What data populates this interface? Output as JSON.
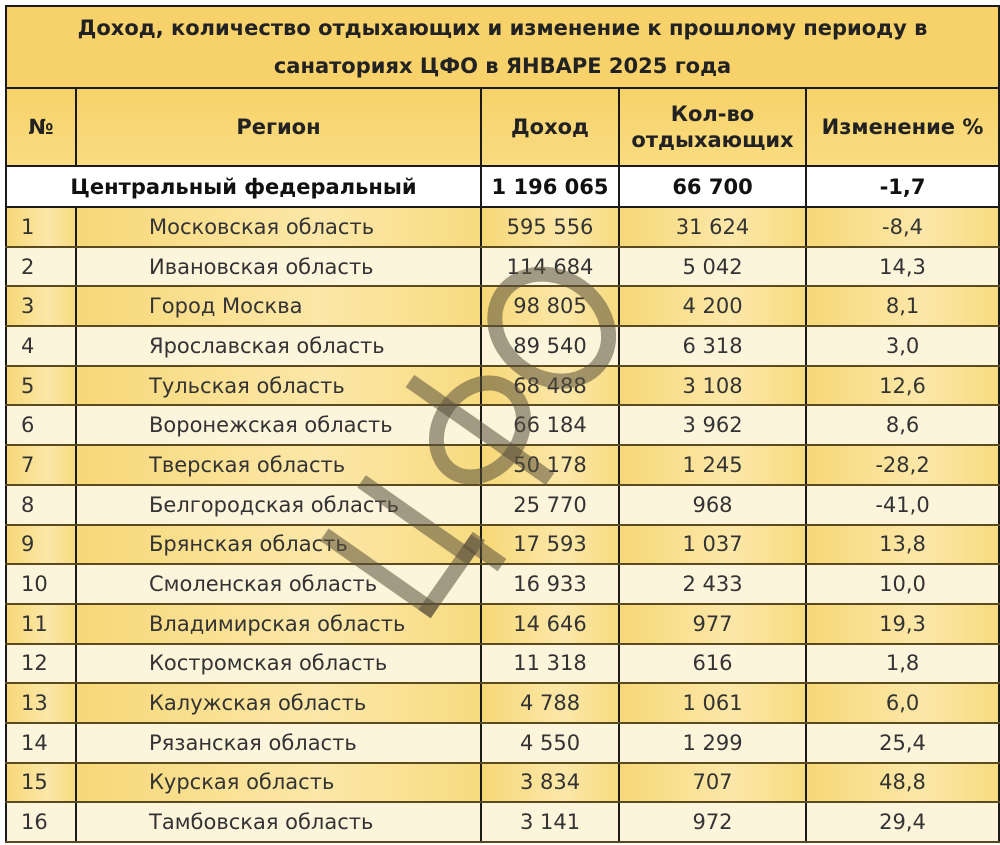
{
  "title": "Доход, количество отдыхающих и изменение к прошлому периоду в санаториях ЦФО в ЯНВАРЕ 2025 года",
  "headers": {
    "num": "№",
    "region": "Регион",
    "income": "Доход",
    "count": "Кол-во отдыхающих",
    "change": "Изменение %"
  },
  "total": {
    "region": "Центральный федеральный",
    "income": "1 196 065",
    "count": "66 700",
    "change": "-1,7"
  },
  "rows": [
    {
      "num": "1",
      "region": "Московская область",
      "income": "595 556",
      "count": "31 624",
      "change": "-8,4"
    },
    {
      "num": "2",
      "region": "Ивановская область",
      "income": "114 684",
      "count": "5 042",
      "change": "14,3"
    },
    {
      "num": "3",
      "region": "Город Москва",
      "income": "98 805",
      "count": "4 200",
      "change": "8,1"
    },
    {
      "num": "4",
      "region": "Ярославская область",
      "income": "89 540",
      "count": "6 318",
      "change": "3,0"
    },
    {
      "num": "5",
      "region": "Тульская область",
      "income": "68 488",
      "count": "3 108",
      "change": "12,6"
    },
    {
      "num": "6",
      "region": "Воронежская область",
      "income": "66 184",
      "count": "3 962",
      "change": "8,6"
    },
    {
      "num": "7",
      "region": "Тверская область",
      "income": "50 178",
      "count": "1 245",
      "change": "-28,2"
    },
    {
      "num": "8",
      "region": "Белгородская область",
      "income": "25 770",
      "count": "968",
      "change": "-41,0"
    },
    {
      "num": "9",
      "region": "Брянская область",
      "income": "17 593",
      "count": "1 037",
      "change": "13,8"
    },
    {
      "num": "10",
      "region": "Смоленская область",
      "income": "16 933",
      "count": "2 433",
      "change": "10,0"
    },
    {
      "num": "11",
      "region": "Владимирская область",
      "income": "14 646",
      "count": "977",
      "change": "19,3"
    },
    {
      "num": "12",
      "region": "Костромская область",
      "income": "11 318",
      "count": "616",
      "change": "1,8"
    },
    {
      "num": "13",
      "region": "Калужская область",
      "income": "4 788",
      "count": "1 061",
      "change": "6,0"
    },
    {
      "num": "14",
      "region": "Рязанская область",
      "income": "4 550",
      "count": "1 299",
      "change": "25,4"
    },
    {
      "num": "15",
      "region": "Курская область",
      "income": "3 834",
      "count": "707",
      "change": "48,8"
    },
    {
      "num": "16",
      "region": "Тамбовская область",
      "income": "3 141",
      "count": "972",
      "change": "29,4"
    }
  ],
  "watermark": "ЦФО",
  "colors": {
    "header": "#f7d26a",
    "odd_row": "#f7d877",
    "even_row": "#fdf4dc"
  }
}
